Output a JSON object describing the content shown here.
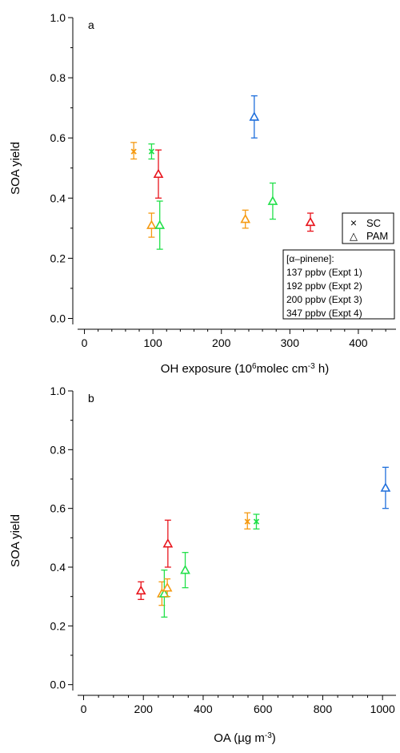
{
  "colors": {
    "expt1": "#e8141c",
    "expt2": "#f59a12",
    "expt3": "#22e04a",
    "expt4": "#1f6fdc",
    "axis": "#000000"
  },
  "legend_markers": {
    "title": "",
    "items": [
      {
        "symbol": "×",
        "label": "SC"
      },
      {
        "symbol": "△",
        "label": "PAM"
      }
    ]
  },
  "legend_expts": {
    "title": "[α–pinene]:",
    "items": [
      {
        "label": "137 ppbv (Expt 1)",
        "color_key": "expt1"
      },
      {
        "label": "192 ppbv (Expt 2)",
        "color_key": "expt2"
      },
      {
        "label": "200 ppbv (Expt 3)",
        "color_key": "expt3"
      },
      {
        "label": "347 ppbv (Expt 4)",
        "color_key": "expt4"
      }
    ]
  },
  "chart_data": [
    {
      "type": "scatter",
      "panel_label": "a",
      "xlabel": {
        "main": "OH exposure (10",
        "sup1": "6",
        "mid": "molec cm",
        "sup2": "-3",
        "end": " h)"
      },
      "ylabel": "SOA yield",
      "xlim": [
        -10,
        455
      ],
      "ylim": [
        -0.02,
        1.0
      ],
      "xticks": [
        0,
        100,
        200,
        300,
        400
      ],
      "xtick_labels": [
        "0",
        "100",
        "200",
        "300",
        "400"
      ],
      "yticks": [
        0.0,
        0.2,
        0.4,
        0.6,
        0.8,
        1.0
      ],
      "ytick_labels": [
        "0.0",
        "0.2",
        "0.4",
        "0.6",
        "0.8",
        "1.0"
      ],
      "x_minor_step": 20,
      "y_minor_step": 0.1,
      "points": [
        {
          "x": 72,
          "y": 0.555,
          "lo": 0.53,
          "hi": 0.585,
          "marker": "x",
          "color_key": "expt2"
        },
        {
          "x": 98,
          "y": 0.555,
          "lo": 0.53,
          "hi": 0.58,
          "marker": "x",
          "color_key": "expt3"
        },
        {
          "x": 108,
          "y": 0.48,
          "lo": 0.4,
          "hi": 0.56,
          "marker": "triangle",
          "color_key": "expt1"
        },
        {
          "x": 98,
          "y": 0.31,
          "lo": 0.27,
          "hi": 0.35,
          "marker": "triangle",
          "color_key": "expt2"
        },
        {
          "x": 110,
          "y": 0.31,
          "lo": 0.23,
          "hi": 0.39,
          "marker": "triangle",
          "color_key": "expt3"
        },
        {
          "x": 248,
          "y": 0.67,
          "lo": 0.6,
          "hi": 0.74,
          "marker": "triangle",
          "color_key": "expt4"
        },
        {
          "x": 235,
          "y": 0.33,
          "lo": 0.3,
          "hi": 0.36,
          "marker": "triangle",
          "color_key": "expt2"
        },
        {
          "x": 275,
          "y": 0.39,
          "lo": 0.33,
          "hi": 0.45,
          "marker": "triangle",
          "color_key": "expt3"
        },
        {
          "x": 330,
          "y": 0.32,
          "lo": 0.29,
          "hi": 0.35,
          "marker": "triangle",
          "color_key": "expt1"
        }
      ]
    },
    {
      "type": "scatter",
      "panel_label": "b",
      "xlabel": {
        "main": "OA (µg m",
        "sup1": "-3",
        "mid": "",
        "sup2": "",
        "end": ")"
      },
      "ylabel": "SOA yield",
      "xlim": [
        -20,
        1045
      ],
      "ylim": [
        -0.02,
        1.0
      ],
      "xticks": [
        0,
        200,
        400,
        600,
        800,
        1000
      ],
      "xtick_labels": [
        "0",
        "200",
        "400",
        "600",
        "800",
        "1000"
      ],
      "yticks": [
        0.0,
        0.2,
        0.4,
        0.6,
        0.8,
        1.0
      ],
      "ytick_labels": [
        "0.0",
        "0.2",
        "0.4",
        "0.6",
        "0.8",
        "1.0"
      ],
      "x_minor_step": 50,
      "y_minor_step": 0.1,
      "points": [
        {
          "x": 192,
          "y": 0.32,
          "lo": 0.29,
          "hi": 0.35,
          "marker": "triangle",
          "color_key": "expt1"
        },
        {
          "x": 262,
          "y": 0.31,
          "lo": 0.27,
          "hi": 0.35,
          "marker": "triangle",
          "color_key": "expt2"
        },
        {
          "x": 270,
          "y": 0.31,
          "lo": 0.23,
          "hi": 0.39,
          "marker": "triangle",
          "color_key": "expt3"
        },
        {
          "x": 280,
          "y": 0.33,
          "lo": 0.3,
          "hi": 0.36,
          "marker": "triangle",
          "color_key": "expt2"
        },
        {
          "x": 282,
          "y": 0.48,
          "lo": 0.4,
          "hi": 0.56,
          "marker": "triangle",
          "color_key": "expt1"
        },
        {
          "x": 340,
          "y": 0.39,
          "lo": 0.33,
          "hi": 0.45,
          "marker": "triangle",
          "color_key": "expt3"
        },
        {
          "x": 548,
          "y": 0.555,
          "lo": 0.53,
          "hi": 0.585,
          "marker": "x",
          "color_key": "expt2"
        },
        {
          "x": 578,
          "y": 0.555,
          "lo": 0.53,
          "hi": 0.58,
          "marker": "x",
          "color_key": "expt3"
        },
        {
          "x": 1010,
          "y": 0.67,
          "lo": 0.6,
          "hi": 0.74,
          "marker": "triangle",
          "color_key": "expt4"
        }
      ]
    }
  ]
}
